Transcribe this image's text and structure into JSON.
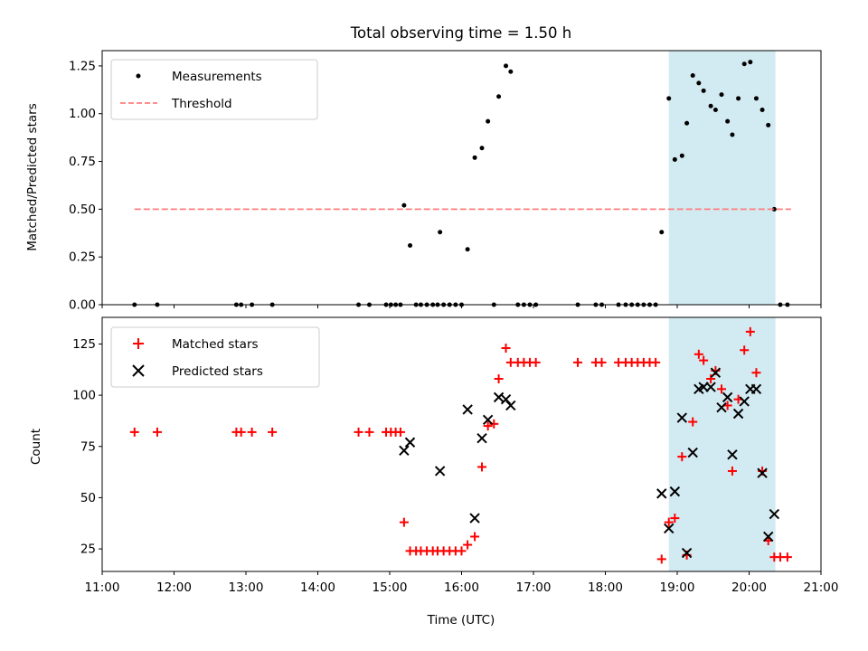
{
  "chart_data": [
    {
      "type": "scatter",
      "title": "Total observing time = 1.50 h",
      "xlabel": "",
      "ylabel": "Matched/Predicted stars",
      "xlim": [
        "11:00",
        "21:00"
      ],
      "ylim": [
        0,
        1.33
      ],
      "yticks": [
        "0.00",
        "0.25",
        "0.50",
        "0.75",
        "1.00",
        "1.25"
      ],
      "shaded_interval": [
        "18:53",
        "20:22"
      ],
      "legend_position": "upper-left",
      "series": [
        {
          "name": "Measurements",
          "marker": "dot",
          "color": "#000000",
          "points": [
            [
              "11:27",
              0
            ],
            [
              "11:46",
              0
            ],
            [
              "12:52",
              0
            ],
            [
              "12:56",
              0
            ],
            [
              "13:05",
              0
            ],
            [
              "13:22",
              0
            ],
            [
              "14:34",
              0
            ],
            [
              "14:43",
              0
            ],
            [
              "14:57",
              0
            ],
            [
              "15:01",
              0
            ],
            [
              "15:05",
              0
            ],
            [
              "15:09",
              0
            ],
            [
              "15:12",
              0.52
            ],
            [
              "15:17",
              0.31
            ],
            [
              "15:22",
              0
            ],
            [
              "15:26",
              0
            ],
            [
              "15:31",
              0
            ],
            [
              "15:36",
              0
            ],
            [
              "15:40",
              0
            ],
            [
              "15:45",
              0
            ],
            [
              "15:50",
              0
            ],
            [
              "15:55",
              0
            ],
            [
              "16:00",
              0
            ],
            [
              "15:42",
              0.38
            ],
            [
              "16:05",
              0.29
            ],
            [
              "16:11",
              0.77
            ],
            [
              "16:17",
              0.82
            ],
            [
              "16:22",
              0.96
            ],
            [
              "16:27",
              0
            ],
            [
              "16:31",
              1.09
            ],
            [
              "16:37",
              1.25
            ],
            [
              "16:41",
              1.22
            ],
            [
              "16:47",
              0
            ],
            [
              "16:52",
              0
            ],
            [
              "16:57",
              0
            ],
            [
              "17:02",
              0
            ],
            [
              "17:37",
              0
            ],
            [
              "17:52",
              0
            ],
            [
              "17:57",
              0
            ],
            [
              "18:11",
              0
            ],
            [
              "18:17",
              0
            ],
            [
              "18:22",
              0
            ],
            [
              "18:27",
              0
            ],
            [
              "18:32",
              0
            ],
            [
              "18:37",
              0
            ],
            [
              "18:42",
              0
            ],
            [
              "18:47",
              0.38
            ],
            [
              "18:53",
              1.08
            ],
            [
              "18:58",
              0.76
            ],
            [
              "19:04",
              0.78
            ],
            [
              "19:08",
              0.95
            ],
            [
              "19:13",
              1.2
            ],
            [
              "19:18",
              1.16
            ],
            [
              "19:22",
              1.12
            ],
            [
              "19:28",
              1.04
            ],
            [
              "19:32",
              1.02
            ],
            [
              "19:37",
              1.1
            ],
            [
              "19:42",
              0.96
            ],
            [
              "19:46",
              0.89
            ],
            [
              "19:51",
              1.08
            ],
            [
              "19:56",
              1.26
            ],
            [
              "20:01",
              1.27
            ],
            [
              "20:06",
              1.08
            ],
            [
              "20:11",
              1.02
            ],
            [
              "20:16",
              0.94
            ],
            [
              "20:21",
              0.5
            ],
            [
              "20:26",
              0
            ],
            [
              "20:32",
              0
            ]
          ]
        },
        {
          "name": "Threshold",
          "marker": "dashed-line",
          "color": "#ff7f7f",
          "points": [
            [
              "11:27",
              0.5
            ],
            [
              "20:35",
              0.5
            ]
          ]
        }
      ]
    },
    {
      "type": "scatter",
      "title": "",
      "xlabel": "Time (UTC)",
      "ylabel": "Count",
      "xlim": [
        "11:00",
        "21:00"
      ],
      "ylim": [
        14,
        138
      ],
      "xticks": [
        "11:00",
        "12:00",
        "13:00",
        "14:00",
        "15:00",
        "16:00",
        "17:00",
        "18:00",
        "19:00",
        "20:00",
        "21:00"
      ],
      "yticks": [
        "25",
        "50",
        "75",
        "100",
        "125"
      ],
      "shaded_interval": [
        "18:53",
        "20:22"
      ],
      "legend_position": "upper-left",
      "series": [
        {
          "name": "Matched stars",
          "marker": "plus",
          "color": "#ff0000",
          "points": [
            [
              "11:27",
              82
            ],
            [
              "11:46",
              82
            ],
            [
              "12:52",
              82
            ],
            [
              "12:56",
              82
            ],
            [
              "13:05",
              82
            ],
            [
              "13:22",
              82
            ],
            [
              "14:34",
              82
            ],
            [
              "14:43",
              82
            ],
            [
              "14:57",
              82
            ],
            [
              "15:01",
              82
            ],
            [
              "15:05",
              82
            ],
            [
              "15:09",
              82
            ],
            [
              "15:12",
              38
            ],
            [
              "15:17",
              24
            ],
            [
              "15:22",
              24
            ],
            [
              "15:26",
              24
            ],
            [
              "15:31",
              24
            ],
            [
              "15:36",
              24
            ],
            [
              "15:40",
              24
            ],
            [
              "15:45",
              24
            ],
            [
              "15:50",
              24
            ],
            [
              "15:55",
              24
            ],
            [
              "16:00",
              24
            ],
            [
              "16:05",
              27
            ],
            [
              "16:11",
              31
            ],
            [
              "16:17",
              65
            ],
            [
              "16:22",
              85
            ],
            [
              "16:27",
              86
            ],
            [
              "16:31",
              108
            ],
            [
              "16:37",
              123
            ],
            [
              "16:41",
              116
            ],
            [
              "16:47",
              116
            ],
            [
              "16:52",
              116
            ],
            [
              "16:57",
              116
            ],
            [
              "17:02",
              116
            ],
            [
              "17:37",
              116
            ],
            [
              "17:52",
              116
            ],
            [
              "17:57",
              116
            ],
            [
              "18:11",
              116
            ],
            [
              "18:17",
              116
            ],
            [
              "18:22",
              116
            ],
            [
              "18:27",
              116
            ],
            [
              "18:32",
              116
            ],
            [
              "18:37",
              116
            ],
            [
              "18:42",
              116
            ],
            [
              "18:47",
              20
            ],
            [
              "18:53",
              38
            ],
            [
              "18:58",
              40
            ],
            [
              "19:04",
              70
            ],
            [
              "19:08",
              22
            ],
            [
              "19:13",
              87
            ],
            [
              "19:18",
              120
            ],
            [
              "19:22",
              117
            ],
            [
              "19:28",
              108
            ],
            [
              "19:32",
              112
            ],
            [
              "19:37",
              103
            ],
            [
              "19:42",
              95
            ],
            [
              "19:46",
              63
            ],
            [
              "19:51",
              98
            ],
            [
              "19:56",
              122
            ],
            [
              "20:01",
              131
            ],
            [
              "20:06",
              111
            ],
            [
              "20:11",
              63
            ],
            [
              "20:16",
              29
            ],
            [
              "20:21",
              21
            ],
            [
              "20:26",
              21
            ],
            [
              "20:32",
              21
            ]
          ]
        },
        {
          "name": "Predicted stars",
          "marker": "x",
          "color": "#000000",
          "points": [
            [
              "15:12",
              73
            ],
            [
              "15:17",
              77
            ],
            [
              "15:42",
              63
            ],
            [
              "16:05",
              93
            ],
            [
              "16:11",
              40
            ],
            [
              "16:17",
              79
            ],
            [
              "16:22",
              88
            ],
            [
              "16:31",
              99
            ],
            [
              "16:37",
              98
            ],
            [
              "16:41",
              95
            ],
            [
              "18:47",
              52
            ],
            [
              "18:53",
              35
            ],
            [
              "18:58",
              53
            ],
            [
              "19:04",
              89
            ],
            [
              "19:08",
              23
            ],
            [
              "19:13",
              72
            ],
            [
              "19:18",
              103
            ],
            [
              "19:22",
              104
            ],
            [
              "19:28",
              104
            ],
            [
              "19:32",
              111
            ],
            [
              "19:37",
              94
            ],
            [
              "19:42",
              99
            ],
            [
              "19:46",
              71
            ],
            [
              "19:51",
              91
            ],
            [
              "19:56",
              97
            ],
            [
              "20:01",
              103
            ],
            [
              "20:06",
              103
            ],
            [
              "20:11",
              62
            ],
            [
              "20:16",
              31
            ],
            [
              "20:21",
              42
            ]
          ]
        }
      ]
    }
  ]
}
